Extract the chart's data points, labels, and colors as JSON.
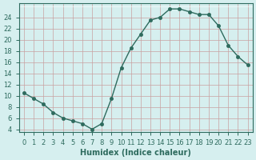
{
  "xlabel": "Humidex (Indice chaleur)",
  "ylabel": "",
  "x": [
    0,
    1,
    2,
    3,
    4,
    5,
    6,
    7,
    8,
    9,
    10,
    11,
    12,
    13,
    14,
    15,
    16,
    17,
    18,
    19,
    20,
    21,
    22,
    23
  ],
  "y": [
    10.5,
    9.5,
    8.5,
    7.0,
    6.0,
    5.5,
    5.0,
    4.0,
    5.0,
    9.5,
    15.0,
    18.5,
    21.0,
    23.5,
    24.0,
    25.5,
    25.5,
    25.0,
    24.5,
    24.5,
    22.5,
    19.0,
    17.0,
    15.5
  ],
  "line_color": "#2e6b5e",
  "marker": "o",
  "marker_size": 3,
  "bg_color": "#d6efef",
  "grid_color": "#c8a0a0",
  "grid2_color": "#ffffff",
  "ylim": [
    3.5,
    26.5
  ],
  "xlim": [
    -0.5,
    23.5
  ],
  "yticks": [
    4,
    6,
    8,
    10,
    12,
    14,
    16,
    18,
    20,
    22,
    24
  ],
  "xticks": [
    0,
    1,
    2,
    3,
    4,
    5,
    6,
    7,
    8,
    9,
    10,
    11,
    12,
    13,
    14,
    15,
    16,
    17,
    18,
    19,
    20,
    21,
    22,
    23
  ],
  "tick_fontsize": 6,
  "xlabel_fontsize": 7,
  "tick_color": "#2e6b5e",
  "axis_color": "#2e6b5e"
}
